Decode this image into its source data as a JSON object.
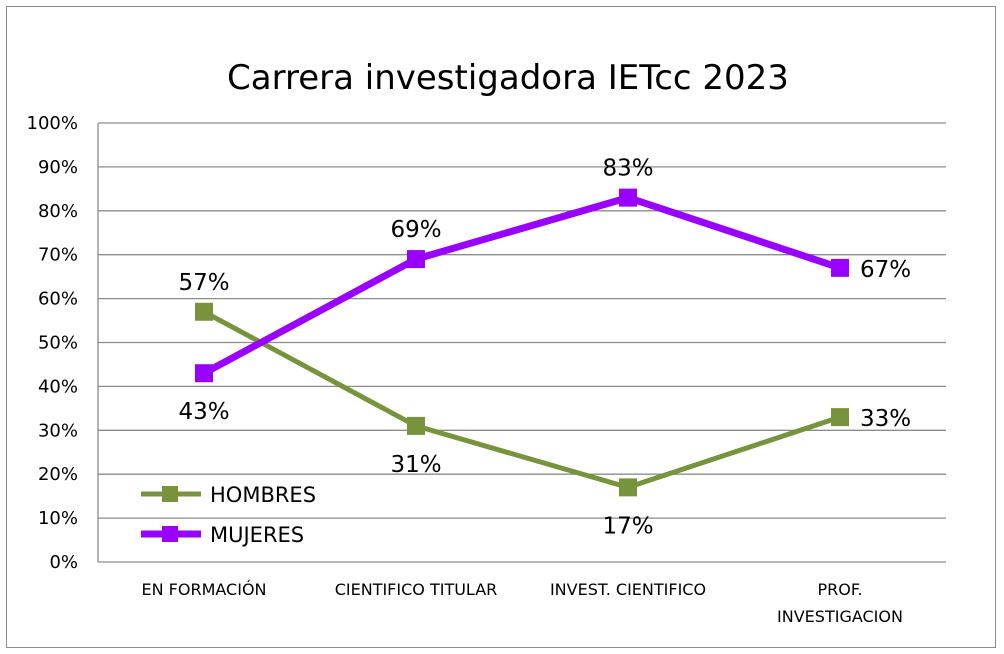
{
  "chart_data": {
    "type": "line",
    "title": "Carrera investigadora IETcc 2023",
    "categories": [
      "EN FORMACIÓN",
      "CIENTIFICO TITULAR",
      "INVEST. CIENTIFICO",
      "PROF. INVESTIGACION"
    ],
    "series": [
      {
        "name": "HOMBRES",
        "values": [
          57,
          31,
          17,
          33
        ],
        "labels": [
          "57%",
          "31%",
          "17%",
          "33%"
        ],
        "color": "#77933c"
      },
      {
        "name": "MUJERES",
        "values": [
          43,
          69,
          83,
          67
        ],
        "labels": [
          "43%",
          "69%",
          "83%",
          "67%"
        ],
        "color": "#9900ff"
      }
    ],
    "ylim": [
      0,
      100
    ],
    "yticks": [
      "0%",
      "10%",
      "20%",
      "30%",
      "40%",
      "50%",
      "60%",
      "70%",
      "80%",
      "90%",
      "100%"
    ],
    "grid": true,
    "legend": "bottom-left"
  }
}
